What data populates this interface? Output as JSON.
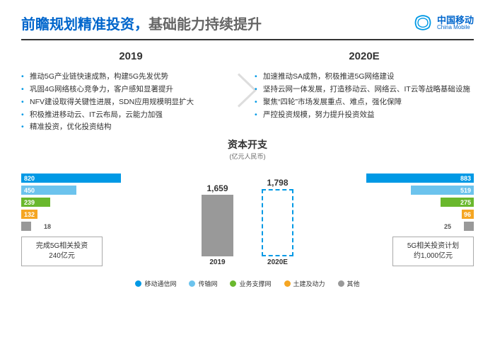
{
  "header": {
    "title_blue": "前瞻规划精准投资，",
    "title_gray": "基础能力持续提升",
    "logo_cn": "中国移动",
    "logo_en": "China Mobile",
    "logo_color": "#0099e5"
  },
  "columns": {
    "left": {
      "year": "2019",
      "bullets": [
        "推动5G产业链快速成熟，构建5G先发优势",
        "巩固4G网络核心竞争力，客户感知显著提升",
        "NFV建设取得关键性进展，SDN应用规模明显扩大",
        "积极推进移动云、IT云布局，云能力加强",
        "精准投资，优化投资结构"
      ]
    },
    "right": {
      "year": "2020E",
      "bullets": [
        "加速推动SA成熟，积极推进5G网络建设",
        "坚持云网一体发展，打造移动云、网络云、IT云等战略基础设施",
        "聚焦“四轮”市场发展重点、难点，强化保障",
        "严控投资规模，努力提升投资效益"
      ]
    }
  },
  "capex": {
    "title": "资本开支",
    "subtitle": "(亿元人民币)",
    "max_h": 900,
    "left_bars": {
      "values": [
        820,
        450,
        239,
        132,
        18
      ],
      "value_labels": [
        "820",
        "450",
        "239",
        "132",
        "18"
      ],
      "colors": [
        "#0099e5",
        "#6cc3ed",
        "#6ab82d",
        "#f5a623",
        "#999999"
      ],
      "note_l1": "完成5G相关投资",
      "note_l2": "240亿元"
    },
    "right_bars": {
      "values": [
        883,
        519,
        275,
        96,
        25
      ],
      "value_labels": [
        "883",
        "519",
        "275",
        "96",
        "25"
      ],
      "colors": [
        "#0099e5",
        "#6cc3ed",
        "#6ab82d",
        "#f5a623",
        "#999999"
      ],
      "note_l1": "5G相关投资计划",
      "note_l2": "约1,000亿元"
    },
    "center_bars": [
      {
        "label": "2019",
        "value": 1659,
        "value_label": "1,659",
        "color": "#999999",
        "dashed": false,
        "max": 1800
      },
      {
        "label": "2020E",
        "value": 1798,
        "value_label": "1,798",
        "color": "#ffffff",
        "dashed": true,
        "border_color": "#0099e5",
        "max": 1800
      }
    ]
  },
  "legend": {
    "items": [
      {
        "label": "移动通信网",
        "color": "#0099e5"
      },
      {
        "label": "传输网",
        "color": "#6cc3ed"
      },
      {
        "label": "业务支撑网",
        "color": "#6ab82d"
      },
      {
        "label": "土建及动力",
        "color": "#f5a623"
      },
      {
        "label": "其他",
        "color": "#999999"
      }
    ]
  }
}
